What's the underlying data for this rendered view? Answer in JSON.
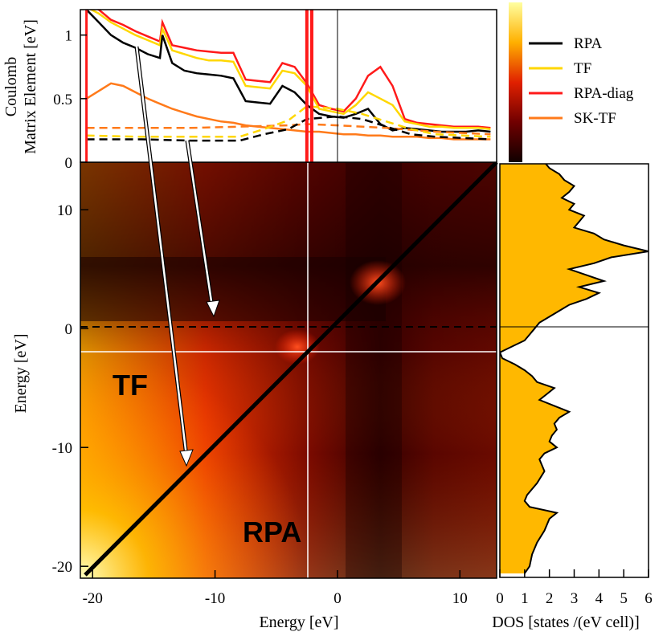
{
  "chart_data": [
    {
      "type": "line",
      "panel": "top",
      "ylabel_line1": "Coulomb",
      "ylabel_line2": "Matrix Element [eV]",
      "xlim": [
        -21,
        13
      ],
      "ylim": [
        0,
        1.2
      ],
      "y_ticks": [
        "0",
        "0.5",
        "1"
      ],
      "y_tick_values": [
        0,
        0.5,
        1
      ],
      "legend": [
        {
          "name": "RPA",
          "color": "#000000"
        },
        {
          "name": "TF",
          "color": "#ffd700"
        },
        {
          "name": "RPA-diag",
          "color": "#ff1a1a"
        },
        {
          "name": "SK-TF",
          "color": "#ff7a1a"
        }
      ],
      "series": [
        {
          "name": "RPA",
          "style": "solid",
          "x": [
            -20.5,
            -19.5,
            -18.5,
            -17.5,
            -16.5,
            -15.5,
            -14.5,
            -14.3,
            -13.5,
            -12.5,
            -11.5,
            -10.5,
            -9.5,
            -8.5,
            -7.5,
            -6.5,
            -5.5,
            -4.5,
            -3.5,
            -2.5,
            -1.5,
            -0.5,
            0.5,
            1.5,
            2.5,
            3.5,
            4.5,
            5.5,
            6.5,
            7.5,
            8.5,
            9.5,
            10.5,
            11.5,
            12.5
          ],
          "y": [
            1.2,
            1.1,
            1.0,
            0.94,
            0.9,
            0.85,
            0.82,
            1.0,
            0.78,
            0.72,
            0.7,
            0.69,
            0.68,
            0.66,
            0.48,
            0.47,
            0.46,
            0.6,
            0.55,
            0.45,
            0.38,
            0.36,
            0.35,
            0.38,
            0.42,
            0.3,
            0.25,
            0.27,
            0.26,
            0.25,
            0.24,
            0.24,
            0.24,
            0.25,
            0.24
          ]
        },
        {
          "name": "TF",
          "style": "solid",
          "x": [
            -20.5,
            -19.5,
            -18.5,
            -17.5,
            -16.5,
            -15.5,
            -14.5,
            -14.3,
            -13.5,
            -12.5,
            -11.5,
            -10.5,
            -9.5,
            -8.5,
            -7.5,
            -6.5,
            -5.5,
            -4.5,
            -3.5,
            -2.5,
            -1.5,
            -0.5,
            0.5,
            1.5,
            2.5,
            3.5,
            4.5,
            5.5,
            6.5,
            7.5,
            8.5,
            9.5,
            10.5,
            11.5,
            12.5
          ],
          "y": [
            1.22,
            1.17,
            1.1,
            1.05,
            1.0,
            0.96,
            0.92,
            1.05,
            0.88,
            0.85,
            0.82,
            0.8,
            0.8,
            0.79,
            0.6,
            0.59,
            0.58,
            0.72,
            0.7,
            0.6,
            0.42,
            0.4,
            0.38,
            0.45,
            0.55,
            0.5,
            0.45,
            0.32,
            0.3,
            0.28,
            0.28,
            0.27,
            0.27,
            0.27,
            0.26
          ]
        },
        {
          "name": "RPA-diag",
          "style": "solid",
          "x": [
            -20.5,
            -19.5,
            -18.5,
            -17.5,
            -16.5,
            -15.5,
            -14.5,
            -14.3,
            -13.5,
            -12.5,
            -11.5,
            -10.5,
            -9.5,
            -8.5,
            -7.5,
            -6.5,
            -5.5,
            -4.5,
            -3.5,
            -2.5,
            -1.5,
            -0.5,
            0.5,
            1.5,
            2.5,
            3.5,
            4.5,
            5.5,
            6.5,
            7.5,
            8.5,
            9.5,
            10.5,
            11.5,
            12.5
          ],
          "y": [
            1.25,
            1.2,
            1.12,
            1.08,
            1.03,
            0.99,
            0.95,
            1.1,
            0.92,
            0.9,
            0.88,
            0.87,
            0.86,
            0.86,
            0.65,
            0.64,
            0.63,
            0.78,
            0.75,
            0.62,
            0.45,
            0.42,
            0.4,
            0.5,
            0.68,
            0.75,
            0.6,
            0.34,
            0.31,
            0.3,
            0.29,
            0.28,
            0.28,
            0.28,
            0.27
          ]
        },
        {
          "name": "SK-TF",
          "style": "solid",
          "x": [
            -20.5,
            -19.5,
            -18.5,
            -17.5,
            -16.5,
            -15.5,
            -14.5,
            -13.5,
            -12.5,
            -11.5,
            -10.5,
            -9.5,
            -8.5,
            -7.5,
            -6.5,
            -5.5,
            -4.5,
            -3.5,
            -2.5,
            -1.5,
            -0.5,
            0.5,
            1.5,
            2.5,
            3.5,
            4.5,
            5.5,
            6.5,
            7.5,
            8.5,
            9.5,
            10.5,
            11.5,
            12.5
          ],
          "y": [
            0.5,
            0.56,
            0.62,
            0.6,
            0.55,
            0.5,
            0.46,
            0.42,
            0.39,
            0.36,
            0.34,
            0.32,
            0.31,
            0.29,
            0.28,
            0.27,
            0.26,
            0.25,
            0.24,
            0.24,
            0.23,
            0.22,
            0.22,
            0.21,
            0.21,
            0.2,
            0.2,
            0.2,
            0.19,
            0.19,
            0.18,
            0.18,
            0.18,
            0.18
          ]
        },
        {
          "name": "SK-TF dashed",
          "style": "dashed",
          "x": [
            -20.5,
            -16,
            -12,
            -8,
            -4,
            -2.5,
            0,
            4,
            8,
            12.5
          ],
          "y": [
            0.27,
            0.27,
            0.27,
            0.28,
            0.29,
            0.3,
            0.29,
            0.27,
            0.24,
            0.22
          ]
        },
        {
          "name": "RPA dashed",
          "style": "dashed",
          "x": [
            -20.5,
            -16,
            -12,
            -8,
            -6,
            -4,
            -2.5,
            0,
            2,
            4,
            6,
            8,
            12.5
          ],
          "y": [
            0.18,
            0.18,
            0.17,
            0.17,
            0.22,
            0.26,
            0.34,
            0.36,
            0.34,
            0.28,
            0.22,
            0.2,
            0.18
          ]
        },
        {
          "name": "TF dashed",
          "style": "dashed",
          "x": [
            -20.5,
            -16,
            -12,
            -8,
            -6,
            -4,
            -2.5,
            0,
            2,
            4,
            6,
            8,
            12.5
          ],
          "y": [
            0.21,
            0.2,
            0.2,
            0.2,
            0.26,
            0.33,
            0.44,
            0.42,
            0.38,
            0.32,
            0.26,
            0.22,
            0.2
          ]
        }
      ]
    },
    {
      "type": "heatmap",
      "panel": "main",
      "xlabel": "Energy [eV]",
      "ylabel": "Energy [eV]",
      "xlim": [
        -21,
        13
      ],
      "ylim": [
        -21,
        14
      ],
      "x_ticks": [
        "-20",
        "-10",
        "0",
        "10"
      ],
      "x_tick_values": [
        -20,
        -10,
        0,
        10
      ],
      "y_ticks": [
        "-20",
        "-10",
        "0",
        "10"
      ],
      "y_tick_values": [
        -20,
        -10,
        0,
        10
      ],
      "fermi_level": 0,
      "gap_line": -2,
      "diagonal_start": [
        -20.3,
        -20.3
      ],
      "diagonal_end": [
        13,
        13
      ],
      "region_labels": [
        "TF",
        "RPA"
      ],
      "colorbar": "hot"
    },
    {
      "type": "area",
      "panel": "dos",
      "xlabel": "DOS [states /(eV cell)]",
      "x_ticks": [
        "0",
        "1",
        "2",
        "3",
        "4",
        "5",
        "6"
      ],
      "x_tick_values": [
        0,
        1,
        2,
        3,
        4,
        5,
        6
      ],
      "xlim": [
        0,
        6
      ],
      "fill_color": "#ffb800",
      "energy": [
        -20.6,
        -20,
        -19,
        -18,
        -17,
        -16,
        -15.5,
        -15,
        -14.5,
        -14,
        -13,
        -12,
        -11,
        -10.5,
        -10,
        -9.5,
        -9,
        -8.5,
        -8,
        -7.5,
        -7,
        -6.5,
        -6,
        -5.5,
        -5,
        -4.5,
        -4,
        -3.5,
        -3,
        -2.5,
        -2,
        -1.5,
        -1,
        -0.5,
        0,
        0.5,
        1,
        1.5,
        2,
        2.5,
        3,
        3.5,
        4,
        4.5,
        5,
        5.5,
        6,
        6.5,
        7,
        7.5,
        8,
        8.5,
        9,
        9.5,
        10,
        10.5,
        11,
        11.5,
        12,
        12.5,
        13,
        13.5,
        14
      ],
      "dos": [
        1.0,
        1.2,
        1.3,
        1.5,
        1.8,
        2.0,
        2.3,
        1.2,
        1.0,
        1.1,
        1.5,
        1.8,
        1.6,
        1.8,
        2.3,
        2.0,
        2.1,
        2.3,
        2.2,
        2.4,
        2.8,
        2.2,
        1.6,
        1.9,
        2.2,
        1.5,
        1.3,
        1.0,
        0.6,
        0.1,
        0.0,
        0.5,
        1.0,
        1.2,
        1.4,
        1.6,
        2.0,
        2.4,
        2.8,
        3.5,
        4.0,
        3.2,
        4.2,
        3.5,
        2.8,
        3.8,
        4.5,
        6.0,
        5.0,
        4.2,
        3.8,
        3.0,
        3.2,
        3.4,
        2.8,
        3.0,
        2.5,
        2.8,
        3.0,
        2.6,
        2.4,
        2.0,
        1.8
      ]
    }
  ]
}
